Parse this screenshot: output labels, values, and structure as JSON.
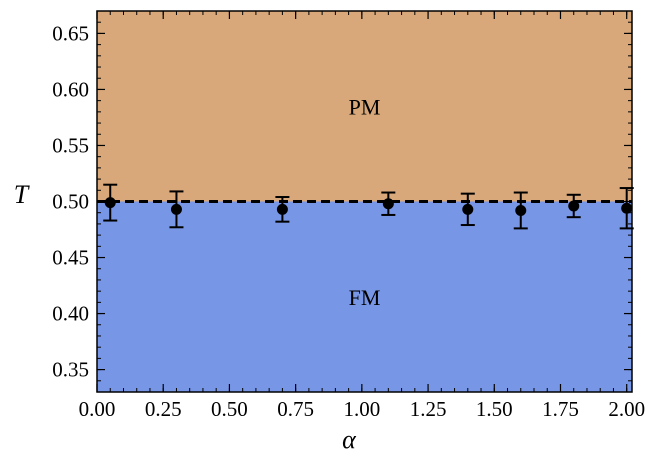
{
  "chart_data": {
    "type": "scatter",
    "xlabel": "α",
    "ylabel": "T",
    "xlim": [
      0.0,
      2.02
    ],
    "ylim": [
      0.33,
      0.67
    ],
    "xticks": [
      "0.00",
      "0.25",
      "0.50",
      "0.75",
      "1.00",
      "1.25",
      "1.50",
      "1.75",
      "2.00"
    ],
    "yticks": [
      "0.35",
      "0.40",
      "0.45",
      "0.50",
      "0.55",
      "0.60",
      "0.65"
    ],
    "regions": [
      {
        "label": "PM",
        "from": 0.5,
        "to": 0.67,
        "color": "#d8a87a"
      },
      {
        "label": "FM",
        "from": 0.33,
        "to": 0.5,
        "color": "#7896e6"
      }
    ],
    "boundary": {
      "y": 0.5,
      "style": "dashed"
    },
    "points": [
      {
        "x": 0.05,
        "y": 0.499,
        "err": 0.016
      },
      {
        "x": 0.3,
        "y": 0.493,
        "err": 0.016
      },
      {
        "x": 0.7,
        "y": 0.493,
        "err": 0.011
      },
      {
        "x": 1.1,
        "y": 0.498,
        "err": 0.01
      },
      {
        "x": 1.4,
        "y": 0.493,
        "err": 0.014
      },
      {
        "x": 1.6,
        "y": 0.492,
        "err": 0.016
      },
      {
        "x": 1.8,
        "y": 0.496,
        "err": 0.01
      },
      {
        "x": 2.0,
        "y": 0.494,
        "err": 0.018
      }
    ],
    "marker_color": "#000000",
    "grid": false
  }
}
